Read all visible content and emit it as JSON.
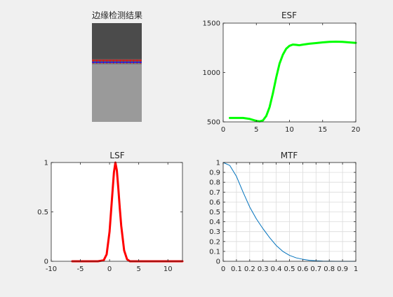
{
  "figure": {
    "background": "#f0f0f0"
  },
  "chart_data": [
    {
      "type": "image",
      "title": "边缘检测结果",
      "description_values": {
        "top_gray": "#4b4b4b",
        "bottom_gray": "#9a9a9a",
        "edge_line_color": "#ff0000",
        "edge_marker_color": "#0000ff",
        "edge_row_fraction": 0.39
      }
    },
    {
      "type": "line",
      "title": "ESF",
      "xlabel": "",
      "ylabel": "",
      "xlim": [
        0,
        20
      ],
      "ylim": [
        500,
        1500
      ],
      "xticks": [
        0,
        5,
        10,
        15,
        20
      ],
      "yticks": [
        500,
        1000,
        1500
      ],
      "grid": false,
      "series": [
        {
          "color": "#00ff00",
          "x": [
            1,
            2,
            3,
            4,
            5,
            5.5,
            6,
            6.5,
            7,
            7.5,
            8,
            8.5,
            9,
            9.5,
            10,
            10.5,
            11,
            11.5,
            12,
            13,
            14,
            15,
            16,
            17,
            18,
            19,
            20
          ],
          "y": [
            540,
            540,
            540,
            530,
            510,
            505,
            515,
            560,
            650,
            790,
            950,
            1090,
            1180,
            1240,
            1270,
            1283,
            1280,
            1276,
            1282,
            1292,
            1298,
            1305,
            1310,
            1312,
            1310,
            1305,
            1300
          ]
        }
      ]
    },
    {
      "type": "line",
      "title": "LSF",
      "xlabel": "",
      "ylabel": "",
      "xlim": [
        -10,
        12.5
      ],
      "ylim": [
        0,
        1
      ],
      "xticks": [
        -10,
        -5,
        0,
        5,
        10
      ],
      "yticks": [
        0,
        0.5,
        1
      ],
      "grid": false,
      "series": [
        {
          "color": "#ff0000",
          "x": [
            -6.4,
            -5,
            -4,
            -3,
            -2,
            -1,
            -0.5,
            0,
            0.25,
            0.5,
            0.75,
            1,
            1.25,
            1.5,
            1.75,
            2,
            2.5,
            3,
            3.5,
            4,
            5,
            6,
            7,
            8,
            9,
            10,
            11,
            12.5
          ],
          "y": [
            0,
            0,
            0,
            0,
            0,
            0.01,
            0.07,
            0.3,
            0.5,
            0.7,
            0.9,
            1.0,
            0.92,
            0.74,
            0.54,
            0.36,
            0.11,
            0.02,
            0,
            0,
            0,
            0,
            0,
            0,
            0,
            0,
            0,
            0
          ]
        }
      ]
    },
    {
      "type": "line",
      "title": "MTF",
      "xlabel": "",
      "ylabel": "",
      "xlim": [
        0,
        1
      ],
      "ylim": [
        0,
        1
      ],
      "xticks": [
        0,
        0.1,
        0.2,
        0.3,
        0.4,
        0.5,
        0.6,
        0.7,
        0.8,
        0.9,
        1
      ],
      "yticks": [
        0,
        0.1,
        0.2,
        0.3,
        0.4,
        0.5,
        0.6,
        0.7,
        0.8,
        0.9,
        1
      ],
      "grid": true,
      "series": [
        {
          "color": "#0072bd",
          "x": [
            0,
            0.05,
            0.1,
            0.15,
            0.2,
            0.25,
            0.3,
            0.35,
            0.4,
            0.45,
            0.5,
            0.55,
            0.6,
            0.65,
            0.7,
            0.75,
            0.8,
            0.85,
            0.9,
            0.95,
            1.0
          ],
          "y": [
            1.0,
            0.97,
            0.86,
            0.7,
            0.55,
            0.43,
            0.33,
            0.24,
            0.16,
            0.1,
            0.06,
            0.035,
            0.02,
            0.01,
            0.005,
            0.002,
            0.001,
            0.0,
            0.0,
            0.0,
            0.0
          ]
        }
      ]
    }
  ]
}
